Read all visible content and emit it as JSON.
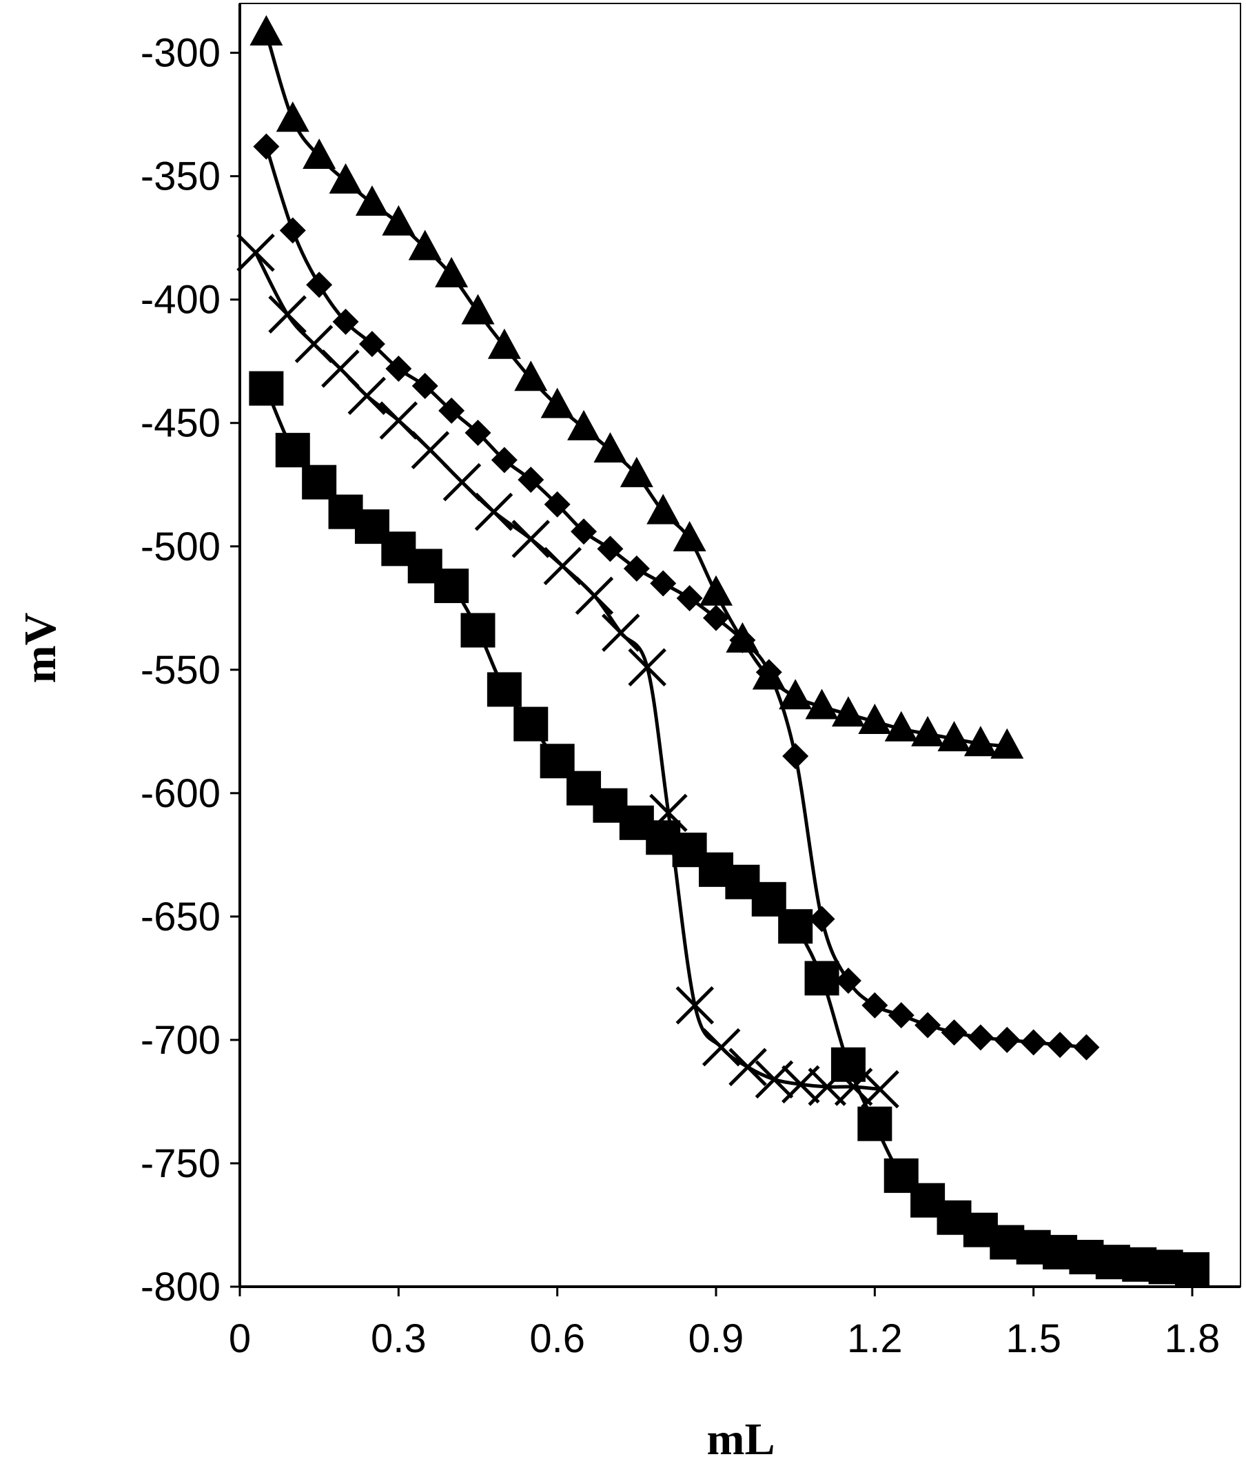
{
  "chart_data": {
    "type": "line",
    "title": "",
    "xlabel": "mL",
    "ylabel": "mV",
    "xlim": [
      0,
      1.8
    ],
    "ylim": [
      -800,
      -280
    ],
    "x_ticks": [
      "0",
      "0.3",
      "0.6",
      "0.9",
      "1.2",
      "1.5",
      "1.8"
    ],
    "y_ticks": [
      "-300",
      "-350",
      "-400",
      "-450",
      "-500",
      "-550",
      "-600",
      "-650",
      "-700",
      "-750",
      "-800"
    ],
    "grid": false,
    "legend": "none",
    "line_color": "#000000",
    "series": [
      {
        "marker": "triangle",
        "x": [
          0.05,
          0.1,
          0.15,
          0.2,
          0.25,
          0.3,
          0.35,
          0.4,
          0.45,
          0.5,
          0.55,
          0.6,
          0.65,
          0.7,
          0.75,
          0.8,
          0.85,
          0.9,
          0.95,
          1.0,
          1.05,
          1.1,
          1.15,
          1.2,
          1.25,
          1.3,
          1.35,
          1.4,
          1.45
        ],
        "y": [
          -292,
          -327,
          -342,
          -352,
          -361,
          -369,
          -379,
          -390,
          -405,
          -419,
          -432,
          -443,
          -452,
          -461,
          -471,
          -486,
          -497,
          -519,
          -538,
          -553,
          -561,
          -565,
          -568,
          -571,
          -574,
          -576,
          -578,
          -580,
          -581
        ]
      },
      {
        "marker": "diamond",
        "x": [
          0.05,
          0.1,
          0.15,
          0.2,
          0.25,
          0.3,
          0.35,
          0.4,
          0.45,
          0.5,
          0.55,
          0.6,
          0.65,
          0.7,
          0.75,
          0.8,
          0.85,
          0.9,
          0.95,
          1.0,
          1.05,
          1.1,
          1.15,
          1.2,
          1.25,
          1.3,
          1.35,
          1.4,
          1.45,
          1.5,
          1.55,
          1.6
        ],
        "y": [
          -338,
          -372,
          -394,
          -409,
          -418,
          -428,
          -435,
          -445,
          -454,
          -465,
          -473,
          -483,
          -494,
          -501,
          -509,
          -515,
          -521,
          -529,
          -538,
          -551,
          -585,
          -651,
          -676,
          -686,
          -690,
          -694,
          -697,
          -699,
          -700,
          -701,
          -702,
          -703
        ]
      },
      {
        "marker": "x",
        "x": [
          0.03,
          0.09,
          0.14,
          0.19,
          0.24,
          0.3,
          0.36,
          0.42,
          0.48,
          0.55,
          0.61,
          0.67,
          0.72,
          0.77,
          0.81,
          0.86,
          0.91,
          0.96,
          1.01,
          1.06,
          1.11,
          1.16,
          1.21
        ],
        "y": [
          -381,
          -406,
          -418,
          -428,
          -439,
          -449,
          -461,
          -474,
          -486,
          -497,
          -508,
          -520,
          -535,
          -549,
          -608,
          -686,
          -703,
          -711,
          -716,
          -718,
          -719,
          -719,
          -720
        ]
      },
      {
        "marker": "square",
        "x": [
          0.05,
          0.1,
          0.15,
          0.2,
          0.25,
          0.3,
          0.35,
          0.4,
          0.45,
          0.5,
          0.55,
          0.6,
          0.65,
          0.7,
          0.75,
          0.8,
          0.85,
          0.9,
          0.95,
          1.0,
          1.05,
          1.1,
          1.15,
          1.2,
          1.25,
          1.3,
          1.35,
          1.4,
          1.45,
          1.5,
          1.55,
          1.6,
          1.65,
          1.7,
          1.75,
          1.8
        ],
        "y": [
          -436,
          -461,
          -474,
          -486,
          -492,
          -501,
          -508,
          -516,
          -534,
          -558,
          -572,
          -587,
          -598,
          -605,
          -612,
          -618,
          -623,
          -631,
          -636,
          -643,
          -654,
          -675,
          -710,
          -734,
          -755,
          -765,
          -772,
          -777,
          -782,
          -784,
          -786,
          -788,
          -790,
          -791,
          -792,
          -793
        ]
      }
    ]
  }
}
